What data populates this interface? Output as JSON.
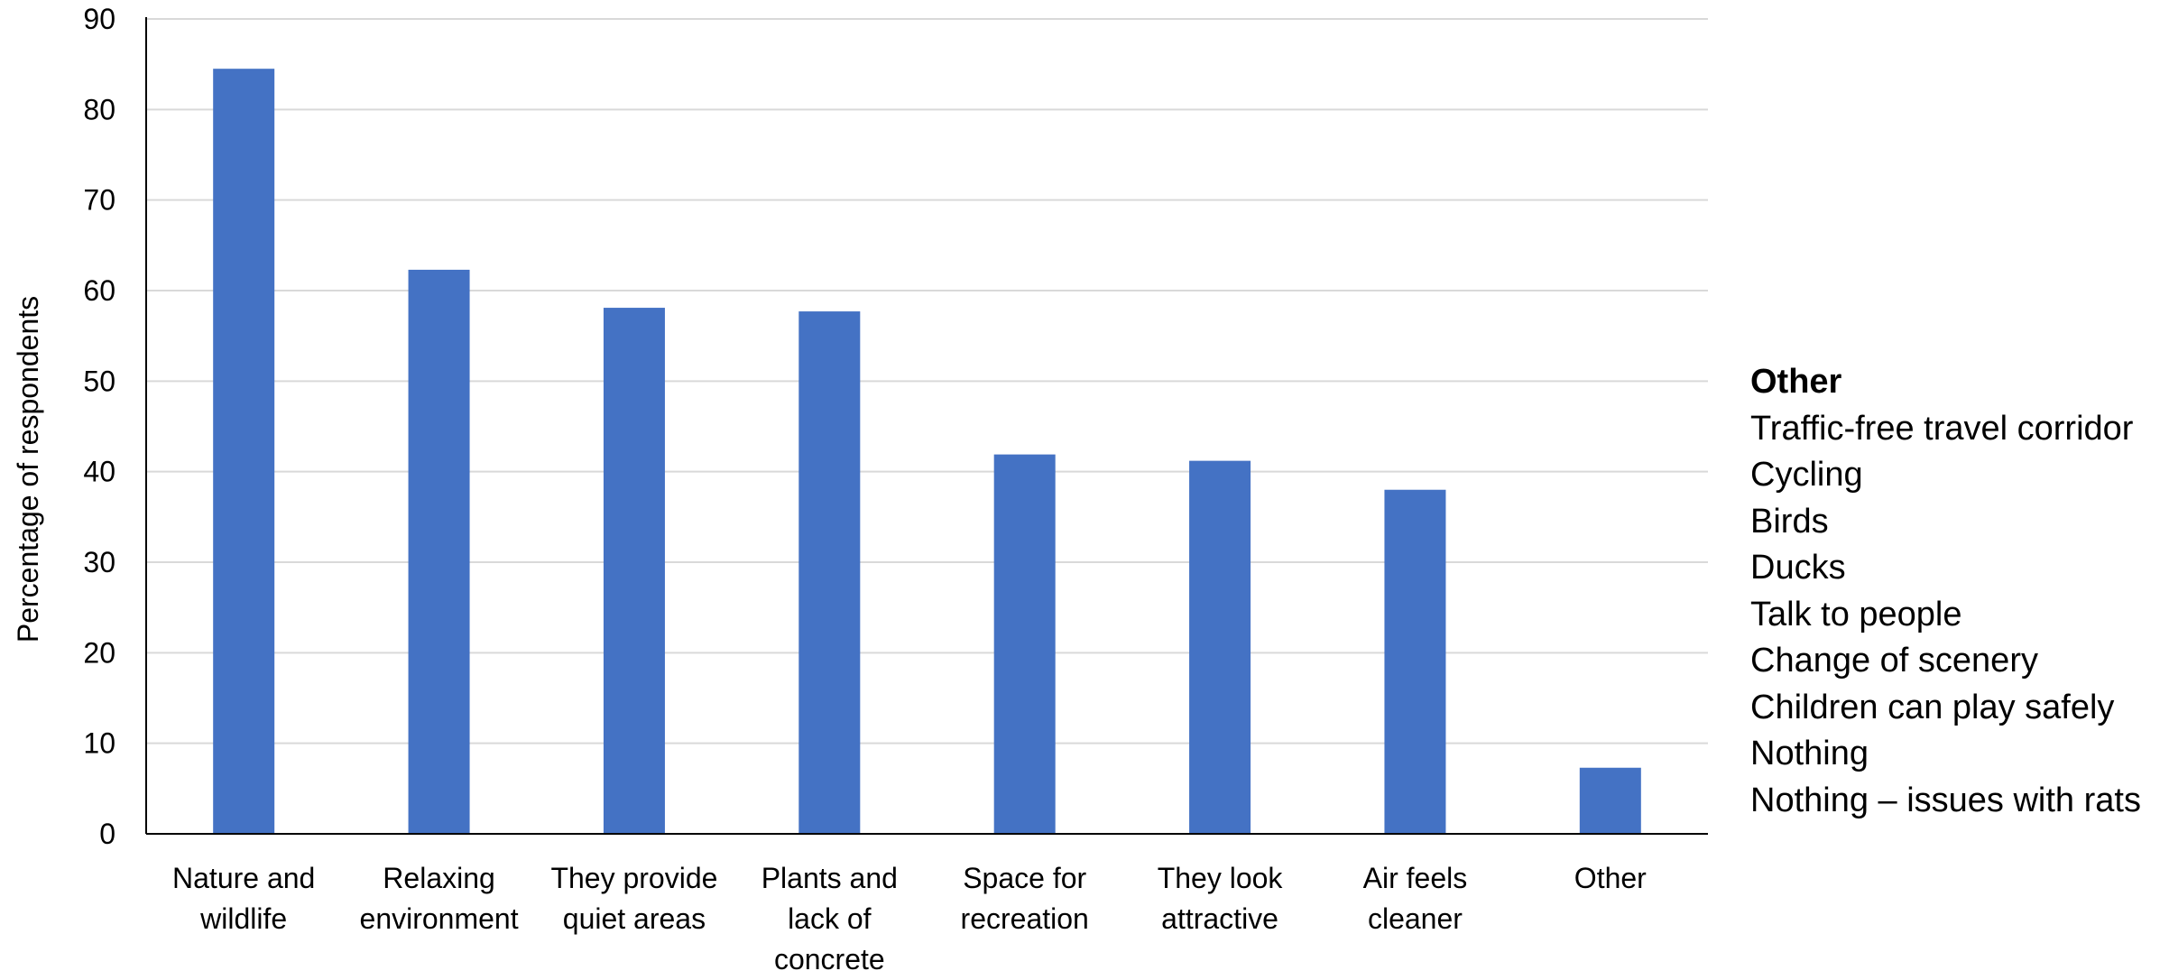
{
  "chart_data": {
    "type": "bar",
    "categories": [
      [
        "Nature and",
        "wildlife"
      ],
      [
        "Relaxing",
        "environment"
      ],
      [
        "They provide",
        "quiet areas"
      ],
      [
        "Plants and",
        "lack of",
        "concrete"
      ],
      [
        "Space for",
        "recreation"
      ],
      [
        "They look",
        "attractive"
      ],
      [
        "Air feels",
        "cleaner"
      ],
      [
        "Other"
      ]
    ],
    "values": [
      84.5,
      62.3,
      58.1,
      57.7,
      41.9,
      41.2,
      38.0,
      7.3
    ],
    "ylabel": "Percentage of respondents",
    "xlabel": "",
    "ylim": [
      0,
      90
    ],
    "yticks": [
      0,
      10,
      20,
      30,
      40,
      50,
      60,
      70,
      80,
      90
    ],
    "grid": true,
    "bar_color": "#4472C4",
    "grid_color": "#D9D9D9",
    "axis_color": "#000000"
  },
  "side_note": {
    "title": "Other",
    "items": [
      "Traffic-free travel corridor",
      "Cycling",
      "Birds",
      "Ducks",
      "Talk to people",
      "Change of scenery",
      "Children can play safely",
      "Nothing",
      "Nothing – issues with rats"
    ]
  }
}
